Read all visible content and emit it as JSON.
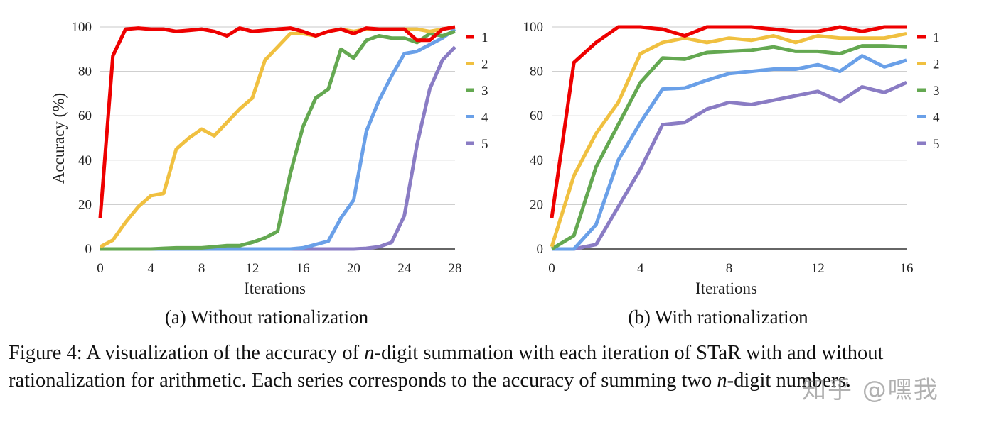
{
  "chart_data": [
    {
      "type": "line",
      "subtitle": "(a) Without rationalization",
      "xlabel": "Iterations",
      "ylabel": "Accuracy (%)",
      "xlim": [
        0,
        28
      ],
      "ylim": [
        0,
        100
      ],
      "xticks": [
        0,
        4,
        8,
        12,
        16,
        20,
        24,
        28
      ],
      "yticks": [
        0,
        20,
        40,
        60,
        80,
        100
      ],
      "grid": "horizontal",
      "legend": "right",
      "x": [
        0,
        1,
        2,
        3,
        4,
        5,
        6,
        7,
        8,
        9,
        10,
        11,
        12,
        13,
        14,
        15,
        16,
        17,
        18,
        19,
        20,
        21,
        22,
        23,
        24,
        25,
        26,
        27,
        28
      ],
      "series": [
        {
          "name": "1",
          "color": "#ee0000",
          "values": [
            14,
            87,
            99,
            99.5,
            99,
            99,
            98,
            98.5,
            99,
            98,
            96,
            99.5,
            98,
            98.5,
            99,
            99.5,
            98,
            96,
            98,
            99,
            97,
            99.5,
            99,
            99,
            99,
            94,
            94,
            99,
            100
          ]
        },
        {
          "name": "2",
          "color": "#f0c040",
          "values": [
            1,
            4,
            12,
            19,
            24,
            25,
            45,
            50,
            54,
            51,
            57,
            63,
            68,
            85,
            91,
            97,
            97,
            96,
            98,
            99,
            98,
            99,
            99,
            99,
            99,
            99,
            98,
            99,
            100
          ]
        },
        {
          "name": "3",
          "color": "#64a851",
          "values": [
            0,
            0,
            0,
            0,
            0,
            0.3,
            0.5,
            0.5,
            0.5,
            1,
            1.5,
            1.5,
            3,
            5,
            8,
            34,
            55,
            68,
            72,
            90,
            86,
            94,
            96,
            95,
            95,
            93,
            97,
            96,
            98
          ]
        },
        {
          "name": "4",
          "color": "#6aa0e8",
          "values": [
            0,
            0,
            0,
            0,
            0,
            0,
            0,
            0,
            0,
            0,
            0,
            0,
            0,
            0,
            0,
            0,
            0.5,
            2,
            3.5,
            14,
            22,
            53,
            67,
            78,
            88,
            89,
            92,
            95,
            99
          ]
        },
        {
          "name": "5",
          "color": "#8a7cc4",
          "values": [
            0,
            0,
            0,
            0,
            0,
            0,
            0,
            0,
            0,
            0,
            0,
            0,
            0,
            0,
            0,
            0,
            0,
            0,
            0,
            0,
            0,
            0.3,
            1,
            3,
            15,
            47,
            72,
            85,
            91
          ]
        }
      ]
    },
    {
      "type": "line",
      "subtitle": "(b) With rationalization",
      "xlabel": "Iterations",
      "xlim": [
        0,
        16
      ],
      "ylim": [
        0,
        100
      ],
      "xticks": [
        0,
        4,
        8,
        12,
        16
      ],
      "yticks": [
        0,
        20,
        40,
        60,
        80,
        100
      ],
      "grid": "horizontal",
      "legend": "right",
      "x": [
        0,
        1,
        2,
        3,
        4,
        5,
        6,
        7,
        8,
        9,
        10,
        11,
        12,
        13,
        14,
        15,
        16
      ],
      "series": [
        {
          "name": "1",
          "color": "#ee0000",
          "values": [
            14,
            84,
            93,
            100,
            100,
            99,
            96,
            100,
            100,
            100,
            99,
            98,
            98,
            100,
            98,
            100,
            100
          ]
        },
        {
          "name": "2",
          "color": "#f0c040",
          "values": [
            1,
            33,
            52,
            66,
            88,
            93,
            95,
            93,
            95,
            94,
            96,
            93,
            96,
            95,
            95,
            95,
            97
          ]
        },
        {
          "name": "3",
          "color": "#64a851",
          "values": [
            0,
            6,
            37,
            56,
            75,
            86,
            85.5,
            88.5,
            89,
            89.5,
            91,
            89,
            89,
            88,
            91.5,
            91.5,
            91
          ]
        },
        {
          "name": "4",
          "color": "#6aa0e8",
          "values": [
            0,
            0,
            11,
            40,
            57,
            72,
            72.5,
            76,
            79,
            80,
            81,
            81,
            83,
            80,
            87,
            82,
            85
          ]
        },
        {
          "name": "5",
          "color": "#8a7cc4",
          "values": [
            0,
            0,
            2,
            19,
            36,
            56,
            57,
            63,
            66,
            65,
            67,
            69,
            71,
            66.5,
            73,
            70.5,
            75
          ]
        }
      ]
    }
  ],
  "caption": {
    "label": "Figure 4:",
    "part1": "A visualization of the accuracy of",
    "var1": "n",
    "part2": "-digit summation with each iteration of STaR with and without rationalization for arithmetic. Each series corresponds to the accuracy of summing two",
    "var2": "n",
    "part3": "-digit numbers."
  },
  "watermark": "知乎 @嘿我"
}
